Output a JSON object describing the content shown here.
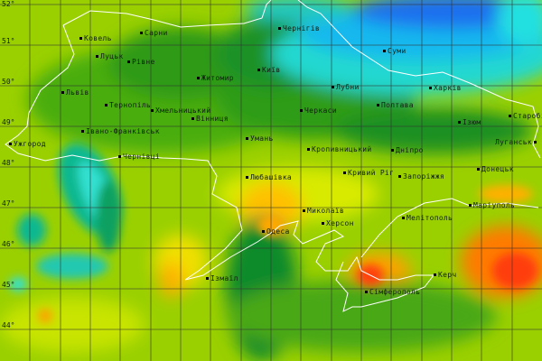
{
  "colors": {
    "blue": "#1e6ef0",
    "cyan": "#20e0d8",
    "teal": "#00b890",
    "dark_green": "#0c8a2a",
    "green": "#3aa512",
    "light_green": "#7cc800",
    "yellow": "#e6ee00",
    "orange": "#ffb400",
    "red": "#ff3c10",
    "border": "#ffffff",
    "grid": "#333333"
  },
  "latitude_labels": [
    "52°",
    "51°",
    "50°",
    "49°",
    "48°",
    "47°",
    "46°",
    "45°",
    "44°"
  ],
  "cities": [
    {
      "name": "Ковель"
    },
    {
      "name": "Сарни"
    },
    {
      "name": "Луцьк"
    },
    {
      "name": "Рівне"
    },
    {
      "name": "Житомир"
    },
    {
      "name": "Київ"
    },
    {
      "name": "Чернігів"
    },
    {
      "name": "Суми"
    },
    {
      "name": "Львів"
    },
    {
      "name": "Тернопіль"
    },
    {
      "name": "Хмельницький"
    },
    {
      "name": "Вінниця"
    },
    {
      "name": "Лубни"
    },
    {
      "name": "Черкаси"
    },
    {
      "name": "Полтава"
    },
    {
      "name": "Харків"
    },
    {
      "name": "Старобільськ"
    },
    {
      "name": "Ізюм"
    },
    {
      "name": "Луганськ"
    },
    {
      "name": "Івано-Франківськ"
    },
    {
      "name": "Ужгород"
    },
    {
      "name": "Чернівці"
    },
    {
      "name": "Умань"
    },
    {
      "name": "Кропивницький"
    },
    {
      "name": "Дніпро"
    },
    {
      "name": "Кривий Ріг"
    },
    {
      "name": "Запоріжжя"
    },
    {
      "name": "Донецьк"
    },
    {
      "name": "Любашівка"
    },
    {
      "name": "Миколаїв"
    },
    {
      "name": "Херсон"
    },
    {
      "name": "Мелітополь"
    },
    {
      "name": "Маріуполь"
    },
    {
      "name": "Одеса"
    },
    {
      "name": "Ізмаїл"
    },
    {
      "name": "Керч"
    },
    {
      "name": "Сімферополь"
    }
  ]
}
